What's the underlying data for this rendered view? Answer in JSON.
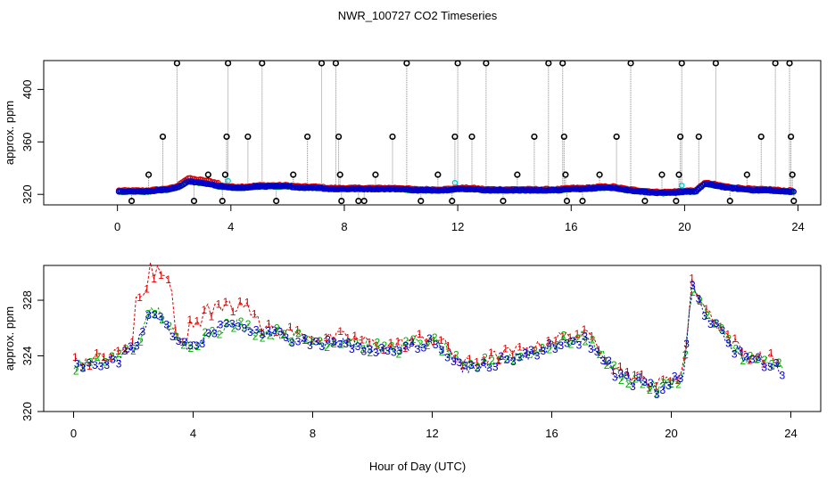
{
  "chart_data": [
    {
      "type": "scatter",
      "title": "NWR_100727  CO2 Timeseries",
      "xlabel": "",
      "ylabel": "approx. ppm",
      "xlim": [
        -2.6,
        24.8
      ],
      "ylim": [
        312,
        422
      ],
      "xticks": [
        0,
        4,
        8,
        12,
        16,
        20,
        24
      ],
      "yticks": [
        320,
        360,
        400
      ],
      "baseline_series": {
        "name": "baseline",
        "points": [
          [
            0.1,
            322
          ],
          [
            0.5,
            322
          ],
          [
            1,
            322
          ],
          [
            1.5,
            323
          ],
          [
            1.9,
            324
          ],
          [
            2.2,
            326
          ],
          [
            2.5,
            330
          ],
          [
            2.8,
            329
          ],
          [
            3.2,
            328
          ],
          [
            3.6,
            326
          ],
          [
            4,
            325
          ],
          [
            4.5,
            325
          ],
          [
            5,
            326
          ],
          [
            5.5,
            326
          ],
          [
            6,
            326
          ],
          [
            6.5,
            325
          ],
          [
            7,
            325
          ],
          [
            7.5,
            324
          ],
          [
            8,
            324
          ],
          [
            8.5,
            324
          ],
          [
            9,
            324
          ],
          [
            9.5,
            324
          ],
          [
            10,
            324
          ],
          [
            10.5,
            323
          ],
          [
            11,
            323
          ],
          [
            11.5,
            323
          ],
          [
            12,
            324
          ],
          [
            12.5,
            324
          ],
          [
            13,
            323
          ],
          [
            13.5,
            323
          ],
          [
            14,
            323
          ],
          [
            14.5,
            323
          ],
          [
            15,
            323
          ],
          [
            15.5,
            323
          ],
          [
            16,
            324
          ],
          [
            16.5,
            324
          ],
          [
            17,
            325
          ],
          [
            17.5,
            325
          ],
          [
            18,
            323
          ],
          [
            18.5,
            322
          ],
          [
            19,
            321
          ],
          [
            19.5,
            321
          ],
          [
            20,
            322
          ],
          [
            20.4,
            322
          ],
          [
            20.7,
            328
          ],
          [
            21,
            327
          ],
          [
            21.5,
            325
          ],
          [
            22,
            324
          ],
          [
            22.5,
            323
          ],
          [
            23,
            323
          ],
          [
            23.5,
            322
          ],
          [
            23.8,
            322
          ]
        ]
      },
      "outlier_points": [
        [
          0.5,
          315
        ],
        [
          1.1,
          335
        ],
        [
          1.6,
          364
        ],
        [
          2.1,
          420
        ],
        [
          2.7,
          315
        ],
        [
          3.2,
          335
        ],
        [
          3.7,
          315
        ],
        [
          3.8,
          335
        ],
        [
          3.85,
          364
        ],
        [
          3.9,
          420
        ],
        [
          4.6,
          364
        ],
        [
          5.1,
          420
        ],
        [
          5.6,
          315
        ],
        [
          6.2,
          335
        ],
        [
          6.7,
          364
        ],
        [
          7.2,
          420
        ],
        [
          7.7,
          420
        ],
        [
          7.8,
          364
        ],
        [
          7.85,
          335
        ],
        [
          7.9,
          315
        ],
        [
          8.5,
          315
        ],
        [
          8.7,
          315
        ],
        [
          9.1,
          335
        ],
        [
          9.7,
          364
        ],
        [
          10.2,
          420
        ],
        [
          10.7,
          315
        ],
        [
          11.3,
          335
        ],
        [
          11.8,
          315
        ],
        [
          11.9,
          364
        ],
        [
          12,
          420
        ],
        [
          12.5,
          364
        ],
        [
          13,
          420
        ],
        [
          13.6,
          315
        ],
        [
          14.1,
          335
        ],
        [
          14.7,
          364
        ],
        [
          15.2,
          420
        ],
        [
          15.7,
          420
        ],
        [
          15.75,
          364
        ],
        [
          15.8,
          335
        ],
        [
          15.85,
          315
        ],
        [
          16.4,
          315
        ],
        [
          17,
          335
        ],
        [
          17.6,
          364
        ],
        [
          18.1,
          420
        ],
        [
          18.6,
          315
        ],
        [
          19.2,
          335
        ],
        [
          19.7,
          315
        ],
        [
          19.8,
          335
        ],
        [
          19.85,
          364
        ],
        [
          19.9,
          420
        ],
        [
          20.5,
          364
        ],
        [
          21.1,
          420
        ],
        [
          21.6,
          315
        ],
        [
          22.2,
          335
        ],
        [
          22.7,
          364
        ],
        [
          23.2,
          420
        ],
        [
          23.7,
          420
        ],
        [
          23.75,
          364
        ],
        [
          23.8,
          335
        ],
        [
          23.85,
          315
        ]
      ],
      "series_colors": {
        "red": "#dd0000",
        "green": "#00aa00",
        "blue": "#0000cc",
        "cyan": "#00cccc",
        "outlier": "#000000",
        "guide": "#888888"
      }
    },
    {
      "type": "scatter",
      "title": "",
      "xlabel": "Hour of Day (UTC)",
      "ylabel": "approx. ppm",
      "xlim": [
        -1.0,
        25.0
      ],
      "ylim": [
        320,
        330.5
      ],
      "xticks": [
        0,
        4,
        8,
        12,
        16,
        20,
        24
      ],
      "yticks": [
        320,
        324,
        328
      ],
      "series": [
        {
          "name": "1",
          "color": "#dd0000"
        },
        {
          "name": "2",
          "color": "#00aa00"
        },
        {
          "name": "3",
          "color": "#0000cc"
        }
      ],
      "baseline_series": {
        "name": "baseline",
        "points": [
          [
            0,
            323.2
          ],
          [
            0.5,
            323.3
          ],
          [
            1,
            323.5
          ],
          [
            1.5,
            323.8
          ],
          [
            2,
            324.5
          ],
          [
            2.3,
            325.5
          ],
          [
            2.6,
            327.2
          ],
          [
            2.9,
            327
          ],
          [
            3.2,
            326
          ],
          [
            3.5,
            324.8
          ],
          [
            4,
            324.7
          ],
          [
            4.5,
            325.5
          ],
          [
            5,
            326
          ],
          [
            5.5,
            326.2
          ],
          [
            6,
            325.8
          ],
          [
            6.5,
            325.5
          ],
          [
            7,
            325.5
          ],
          [
            7.5,
            325.2
          ],
          [
            8,
            325
          ],
          [
            8.5,
            324.8
          ],
          [
            9,
            325
          ],
          [
            9.5,
            324.8
          ],
          [
            10,
            324.5
          ],
          [
            10.5,
            324.3
          ],
          [
            11,
            324.5
          ],
          [
            11.5,
            324.8
          ],
          [
            12,
            325
          ],
          [
            12.5,
            324.3
          ],
          [
            13,
            323
          ],
          [
            13.5,
            323.2
          ],
          [
            14,
            323.5
          ],
          [
            14.5,
            323.8
          ],
          [
            15,
            324
          ],
          [
            15.5,
            324.2
          ],
          [
            16,
            324.8
          ],
          [
            16.5,
            325
          ],
          [
            17,
            325.2
          ],
          [
            17.5,
            324.6
          ],
          [
            18,
            323
          ],
          [
            18.5,
            322.3
          ],
          [
            19,
            322
          ],
          [
            19.5,
            321.5
          ],
          [
            20,
            322
          ],
          [
            20.4,
            322.5
          ],
          [
            20.7,
            329
          ],
          [
            21,
            327.5
          ],
          [
            21.5,
            326
          ],
          [
            22,
            324.7
          ],
          [
            22.5,
            323.8
          ],
          [
            23,
            323.5
          ],
          [
            23.5,
            323.3
          ],
          [
            23.8,
            322.6
          ]
        ]
      }
    }
  ]
}
